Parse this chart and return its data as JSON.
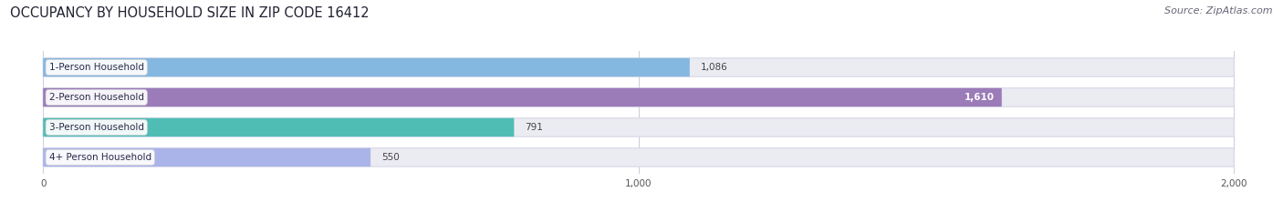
{
  "title": "OCCUPANCY BY HOUSEHOLD SIZE IN ZIP CODE 16412",
  "source": "Source: ZipAtlas.com",
  "categories": [
    "1-Person Household",
    "2-Person Household",
    "3-Person Household",
    "4+ Person Household"
  ],
  "values": [
    1086,
    1610,
    791,
    550
  ],
  "bar_colors": [
    "#85b8e0",
    "#9b7bb8",
    "#50bdb5",
    "#aab4e8"
  ],
  "label_bg_colors": [
    "#ffffff",
    "#ffffff",
    "#ffffff",
    "#ffffff"
  ],
  "value_inside": [
    false,
    true,
    false,
    false
  ],
  "xlim": [
    0,
    2000
  ],
  "xticks": [
    0,
    1000,
    2000
  ],
  "bg_color": "#ffffff",
  "bar_bg_color": "#ebebf2",
  "title_fontsize": 10.5,
  "source_fontsize": 8,
  "label_fontsize": 7.5,
  "value_fontsize": 7.5,
  "bar_height": 0.62,
  "bar_spacing": 1.0,
  "figsize": [
    14.06,
    2.33
  ],
  "dpi": 100
}
